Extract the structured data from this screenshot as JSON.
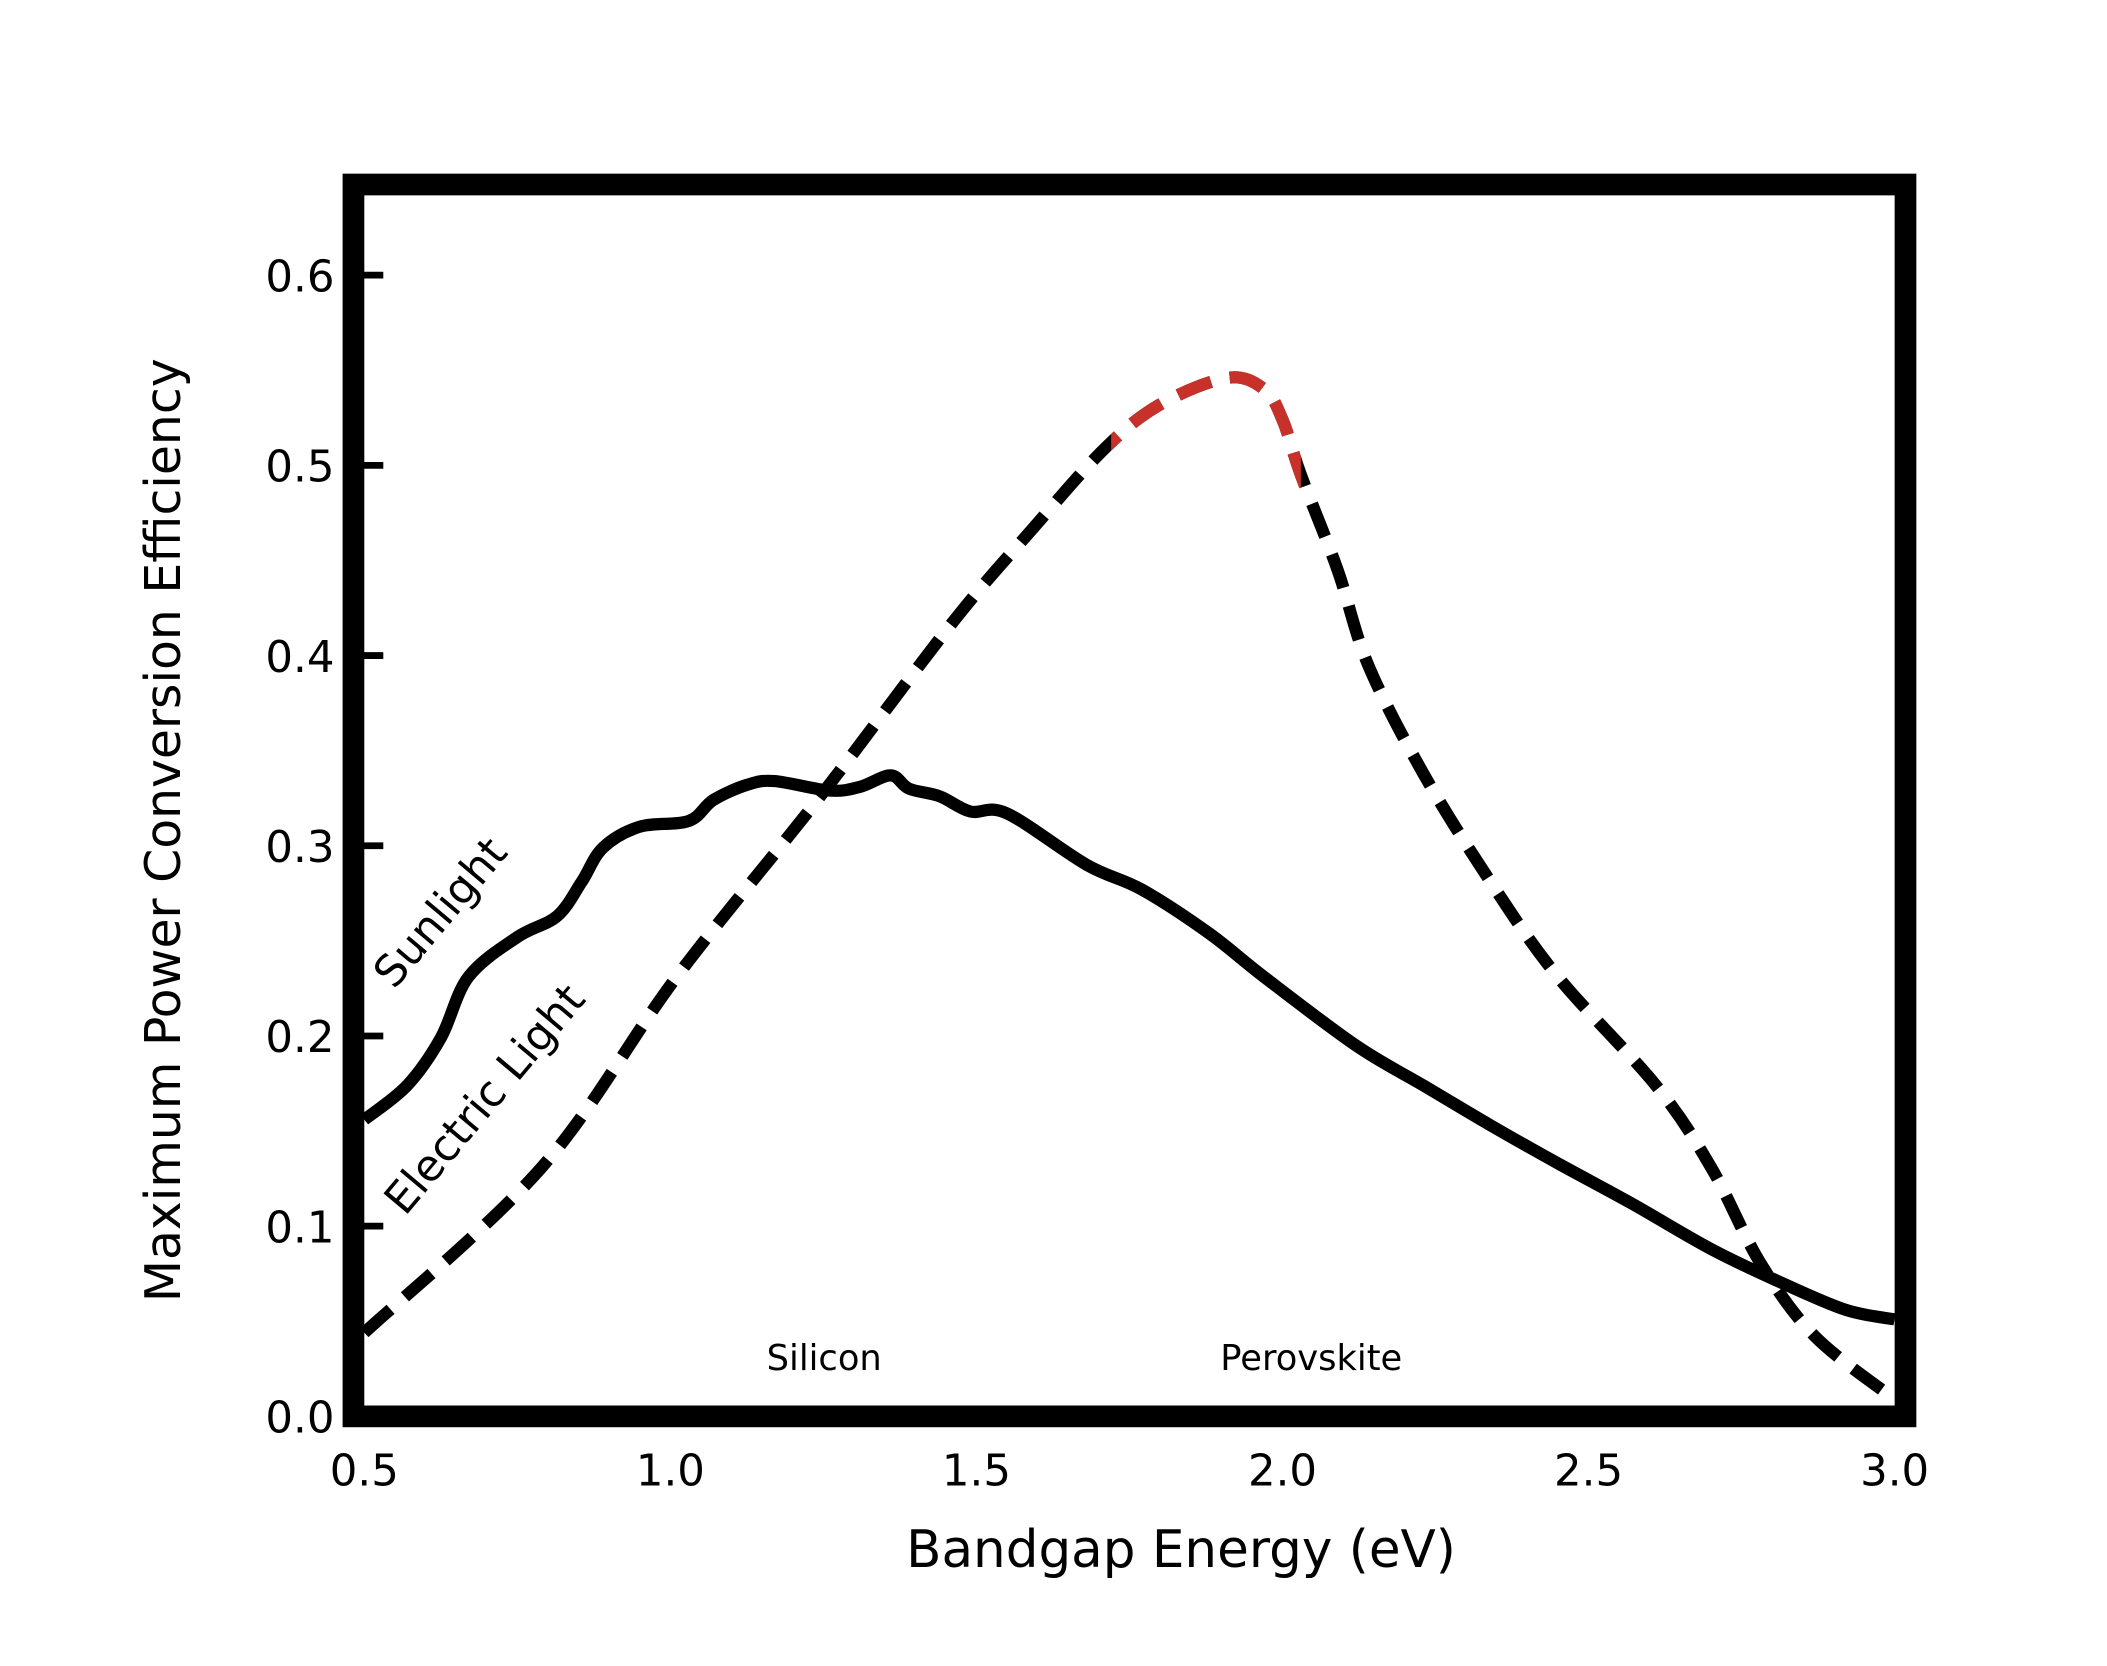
{
  "chart_data": {
    "type": "line",
    "title": "",
    "xlabel": "Bandgap Energy (eV)",
    "ylabel": "Maximum Power Conversion Efficiency",
    "xlim": [
      0.5,
      3.0
    ],
    "ylim": [
      0.0,
      0.65
    ],
    "xticks": [
      "0.5",
      "1.0",
      "1.5",
      "2.0",
      "2.5",
      "3.0"
    ],
    "yticks": [
      "0.0",
      "0.1",
      "0.2",
      "0.3",
      "0.4",
      "0.5",
      "0.6"
    ],
    "grid": false,
    "annotations": [
      {
        "text": "Silicon",
        "x": 1.3
      },
      {
        "text": "Perovskite",
        "x": 2.05
      }
    ],
    "series": [
      {
        "name": "Sunlight",
        "style": "solid",
        "color": "#000000",
        "x": [
          0.5,
          0.57,
          0.625,
          0.67,
          0.75,
          0.815,
          0.855,
          0.89,
          0.95,
          1.03,
          1.07,
          1.125,
          1.17,
          1.26,
          1.31,
          1.36,
          1.39,
          1.44,
          1.49,
          1.55,
          1.68,
          1.77,
          1.88,
          1.97,
          2.12,
          2.23,
          2.34,
          2.45,
          2.57,
          2.7,
          2.81,
          2.92,
          3.0
        ],
        "y": [
          0.156,
          0.174,
          0.199,
          0.231,
          0.252,
          0.263,
          0.281,
          0.299,
          0.31,
          0.313,
          0.324,
          0.332,
          0.334,
          0.329,
          0.331,
          0.337,
          0.33,
          0.326,
          0.318,
          0.317,
          0.29,
          0.277,
          0.254,
          0.231,
          0.195,
          0.174,
          0.153,
          0.133,
          0.112,
          0.088,
          0.071,
          0.056,
          0.051
        ]
      },
      {
        "name": "Electric Light",
        "style": "dashed",
        "color": "#000000",
        "highlight_color": "#c8302a",
        "highlight_range": [
          1.72,
          2.03
        ],
        "x": [
          0.5,
          0.79,
          1.01,
          1.24,
          1.46,
          1.59,
          1.71,
          1.8,
          1.91,
          1.97,
          2.0,
          2.03,
          2.09,
          2.14,
          2.23,
          2.34,
          2.45,
          2.61,
          2.7,
          2.78,
          2.87,
          3.0
        ],
        "y": [
          0.044,
          0.131,
          0.231,
          0.324,
          0.417,
          0.466,
          0.509,
          0.532,
          0.546,
          0.54,
          0.524,
          0.495,
          0.445,
          0.395,
          0.338,
          0.281,
          0.231,
          0.174,
          0.131,
          0.081,
          0.042,
          0.009
        ]
      }
    ]
  }
}
